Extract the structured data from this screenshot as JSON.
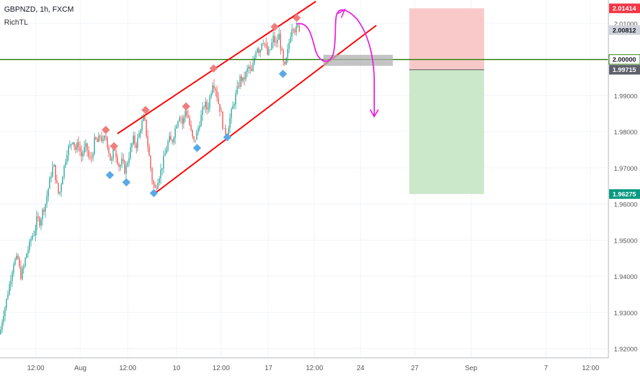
{
  "header": {
    "symbol": "GBPNZD, 1h, FXCM",
    "indicator": "RichTL"
  },
  "colors": {
    "bg": "#ffffff",
    "grid": "#f0f3fa",
    "up": "#26a69a",
    "down": "#ef5350",
    "channel": "#ff0000",
    "level": "#2e7d0e",
    "arrow": "#e91ee0",
    "marker_red": "#f07d7d",
    "marker_blue": "#5aa9e6",
    "sl_zone": "#f9c9c9",
    "tp_zone": "#cbe8cb",
    "zone_box": "#b0b0b0"
  },
  "chart_data": {
    "type": "candlestick",
    "title": "GBPNZD, 1h, FXCM",
    "ylim": [
      1.916,
      2.02
    ],
    "y_ticks": [
      "2.01000",
      "1.99000",
      "1.98000",
      "1.97000",
      "1.96000",
      "1.95000",
      "1.94000",
      "1.93000",
      "1.92000"
    ],
    "x_ticks": [
      "12:00",
      "Aug",
      "12:00",
      "10",
      "12:00",
      "17",
      "12:00",
      "24",
      "27",
      "Sep",
      "7",
      "12:00"
    ],
    "price_labels": [
      {
        "value": "2.01414",
        "kind": "stop-loss"
      },
      {
        "value": "2.00812",
        "kind": "last-price"
      },
      {
        "value": "2.00000",
        "kind": "horizontal-level"
      },
      {
        "value": "1.99715",
        "kind": "entry"
      },
      {
        "value": "1.96275",
        "kind": "take-profit"
      }
    ],
    "price_path": [
      [
        0,
        1.924
      ],
      [
        4,
        1.929
      ],
      [
        8,
        1.932
      ],
      [
        12,
        1.936
      ],
      [
        16,
        1.94
      ],
      [
        20,
        1.944
      ],
      [
        26,
        1.945
      ],
      [
        30,
        1.94
      ],
      [
        34,
        1.942
      ],
      [
        38,
        1.946
      ],
      [
        42,
        1.948
      ],
      [
        46,
        1.951
      ],
      [
        50,
        1.952
      ],
      [
        54,
        1.956
      ],
      [
        58,
        1.955
      ],
      [
        62,
        1.958
      ],
      [
        66,
        1.96
      ],
      [
        70,
        1.964
      ],
      [
        74,
        1.968
      ],
      [
        78,
        1.971
      ],
      [
        82,
        1.966
      ],
      [
        86,
        1.962
      ],
      [
        90,
        1.967
      ],
      [
        94,
        1.971
      ],
      [
        98,
        1.975
      ],
      [
        102,
        1.976
      ],
      [
        106,
        1.978
      ],
      [
        110,
        1.975
      ],
      [
        114,
        1.977
      ],
      [
        118,
        1.973
      ],
      [
        122,
        1.975
      ],
      [
        126,
        1.976
      ],
      [
        130,
        1.972
      ],
      [
        134,
        1.973
      ],
      [
        138,
        1.978
      ],
      [
        142,
        1.977
      ],
      [
        146,
        1.979
      ],
      [
        150,
        1.977
      ],
      [
        154,
        1.979
      ],
      [
        158,
        1.975
      ],
      [
        162,
        1.971
      ],
      [
        166,
        1.976
      ],
      [
        170,
        1.973
      ],
      [
        174,
        1.97
      ],
      [
        178,
        1.972
      ],
      [
        182,
        1.969
      ],
      [
        186,
        1.972
      ],
      [
        190,
        1.975
      ],
      [
        194,
        1.978
      ],
      [
        198,
        1.976
      ],
      [
        202,
        1.979
      ],
      [
        206,
        1.982
      ],
      [
        210,
        1.984
      ],
      [
        214,
        1.978
      ],
      [
        218,
        1.972
      ],
      [
        222,
        1.966
      ],
      [
        226,
        1.964
      ],
      [
        230,
        1.967
      ],
      [
        234,
        1.969
      ],
      [
        238,
        1.972
      ],
      [
        242,
        1.975
      ],
      [
        246,
        1.978
      ],
      [
        250,
        1.977
      ],
      [
        254,
        1.98
      ],
      [
        258,
        1.983
      ],
      [
        262,
        1.985
      ],
      [
        266,
        1.982
      ],
      [
        270,
        1.986
      ],
      [
        274,
        1.984
      ],
      [
        278,
        1.98
      ],
      [
        282,
        1.977
      ],
      [
        286,
        1.979
      ],
      [
        290,
        1.982
      ],
      [
        294,
        1.985
      ],
      [
        298,
        1.988
      ],
      [
        302,
        1.986
      ],
      [
        306,
        1.99
      ],
      [
        310,
        1.994
      ],
      [
        314,
        1.992
      ],
      [
        318,
        1.988
      ],
      [
        322,
        1.985
      ],
      [
        326,
        1.98
      ],
      [
        330,
        1.979
      ],
      [
        334,
        1.983
      ],
      [
        338,
        1.986
      ],
      [
        342,
        1.989
      ],
      [
        346,
        1.992
      ],
      [
        350,
        1.995
      ],
      [
        354,
        1.994
      ],
      [
        358,
        1.996
      ],
      [
        362,
        1.998
      ],
      [
        366,
        1.996
      ],
      [
        370,
        2.0
      ],
      [
        374,
        2.004
      ],
      [
        378,
        2.002
      ],
      [
        382,
        2.006
      ],
      [
        386,
        2.004
      ],
      [
        390,
        2.001
      ],
      [
        394,
        2.003
      ],
      [
        398,
        2.006
      ],
      [
        402,
        2.004
      ],
      [
        406,
        2.007
      ],
      [
        410,
        2.002
      ],
      [
        414,
        1.997
      ],
      [
        418,
        2.001
      ],
      [
        422,
        2.006
      ],
      [
        426,
        2.01
      ],
      [
        430,
        2.008
      ],
      [
        434,
        2.009
      ],
      [
        438,
        2.008
      ]
    ],
    "channel_lines": [
      {
        "from": [
          2,
          1.9805
        ],
        "to": [
          6,
          2.02
        ]
      },
      {
        "from": [
          2,
          1.963
        ],
        "to": [
          6,
          2.012
        ]
      }
    ],
    "horizontal_level": 2.0,
    "markers_red": [
      [
        154,
        1.9805
      ],
      [
        166,
        1.976
      ],
      [
        212,
        1.986
      ],
      [
        271,
        1.987
      ],
      [
        311,
        1.9975
      ],
      [
        400,
        2.009
      ],
      [
        432,
        2.0115
      ]
    ],
    "markers_blue": [
      [
        160,
        1.968
      ],
      [
        184,
        1.966
      ],
      [
        224,
        1.963
      ],
      [
        287,
        1.9755
      ],
      [
        331,
        1.9785
      ],
      [
        412,
        1.996
      ]
    ],
    "zone_box": {
      "y_top": 2.0015,
      "y_bottom": 1.999
    },
    "position": {
      "stop": 2.01414,
      "entry": 1.99715,
      "target": 1.96275
    }
  }
}
